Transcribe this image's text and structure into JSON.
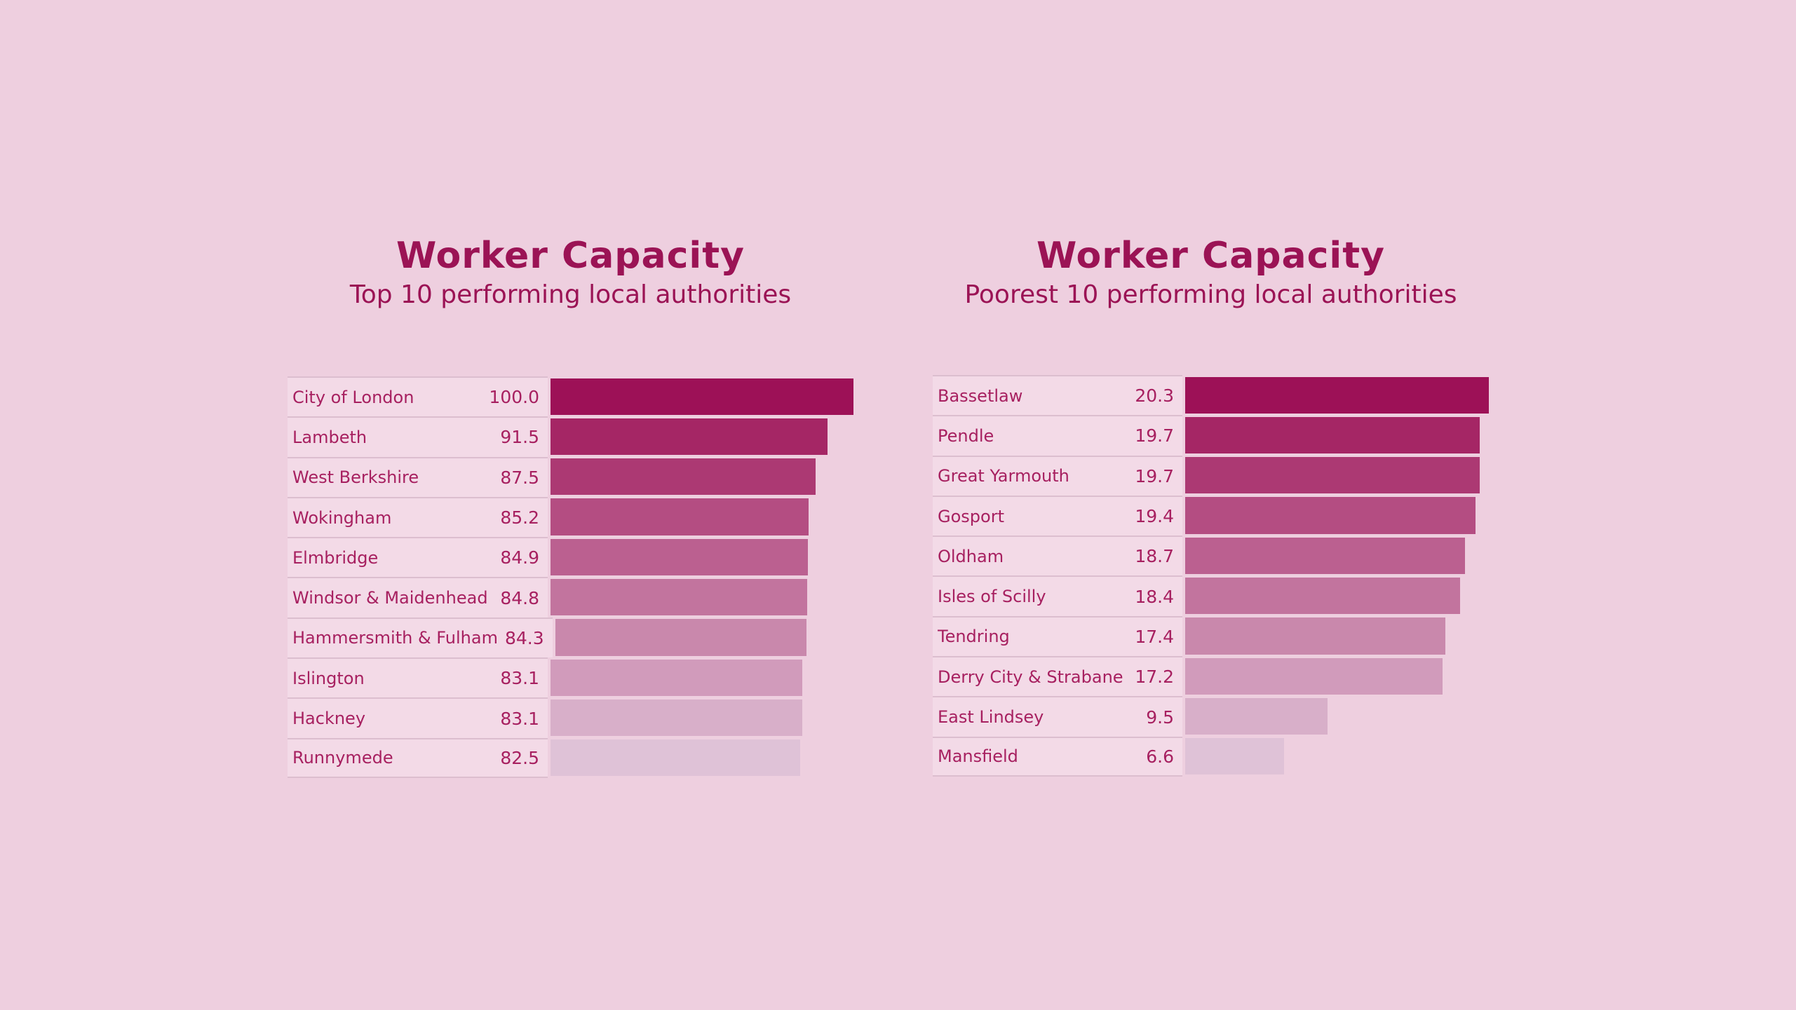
{
  "chart_data": [
    {
      "type": "bar",
      "orientation": "horizontal",
      "title": "Worker Capacity",
      "subtitle": "Top 10 performing local authorities",
      "categories": [
        "City of London",
        "Lambeth",
        "West Berkshire",
        "Wokingham",
        "Elmbridge",
        "Windsor & Maidenhead",
        "Hammersmith & Fulham",
        "Islington",
        "Hackney",
        "Runnymede"
      ],
      "values": [
        100.0,
        91.5,
        87.5,
        85.2,
        84.9,
        84.8,
        84.3,
        83.1,
        83.1,
        82.5
      ],
      "value_labels": [
        "100.0",
        "91.5",
        "87.5",
        "85.2",
        "84.9",
        "84.8",
        "84.3",
        "83.1",
        "83.1",
        "82.5"
      ],
      "xlim": [
        0,
        100.0
      ],
      "grid": false,
      "legend": false,
      "bar_color_mapping": "rank"
    },
    {
      "type": "bar",
      "orientation": "horizontal",
      "title": "Worker Capacity",
      "subtitle": "Poorest 10 performing local authorities",
      "categories": [
        "Bassetlaw",
        "Pendle",
        "Great Yarmouth",
        "Gosport",
        "Oldham",
        "Isles of Scilly",
        "Tendring",
        "Derry City & Strabane",
        "East Lindsey",
        "Mansfield"
      ],
      "values": [
        20.3,
        19.7,
        19.7,
        19.4,
        18.7,
        18.4,
        17.4,
        17.2,
        9.5,
        6.6
      ],
      "value_labels": [
        "20.3",
        "19.7",
        "19.7",
        "19.4",
        "18.7",
        "18.4",
        "17.4",
        "17.2",
        "9.5",
        "6.6"
      ],
      "xlim": [
        0,
        20.3
      ],
      "grid": false,
      "legend": false,
      "bar_color_mapping": "rank"
    }
  ],
  "style": {
    "page_background": "#EECFDF",
    "row_band_background": "#F3DAE7",
    "separator_color": "#DCBECF",
    "title_color": "#9B1355",
    "text_color": "#A72060",
    "bar_colors_by_rank": [
      "#9D1157",
      "#A52665",
      "#AC3973",
      "#B44D82",
      "#BB6090",
      "#C2749E",
      "#C988AC",
      "#D19BBB",
      "#D8AFC9",
      "#DFC2D7"
    ]
  }
}
